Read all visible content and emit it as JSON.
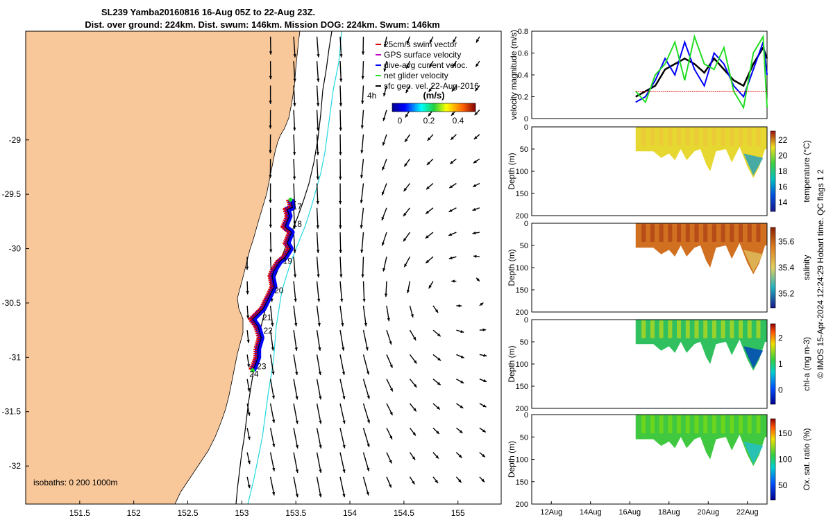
{
  "title": {
    "line1": "SL239 Yamba20160816 16-Aug 05Z to 22-Aug 23Z.",
    "line2": "Dist. over ground: 224km. Dist. swum: 146km. Mission DOG: 224km. Swum: 146km"
  },
  "colors": {
    "land": "#f9c89a",
    "swim": "#e00000",
    "gps": "#c000c0",
    "diveavg": "#0000ff",
    "net": "#22dd22",
    "geo": "#000000",
    "isobath200": "#000000",
    "isobath1000": "#20d8e0"
  },
  "map": {
    "xticks": [
      "151.5",
      "152",
      "152.5",
      "153",
      "153.5",
      "154",
      "154.5",
      "155"
    ],
    "yticks": [
      "-29",
      "-29.5",
      "-30",
      "-30.5",
      "-31",
      "-31.5",
      "-32"
    ],
    "xrange": [
      151.0,
      155.4
    ],
    "yrange": [
      -32.35,
      -28.0
    ],
    "isobaths_label": "isobaths: 0   200  1000m",
    "legend": [
      {
        "label": "25cm/s swim vector",
        "color": "#e00000"
      },
      {
        "label": "GPS surface velocity",
        "color": "#c000c0"
      },
      {
        "label": "dive-avg current veloc.",
        "color": "#0000ff"
      },
      {
        "label": "net glider velocity",
        "color": "#22dd22"
      },
      {
        "label": "sfc geo. vel. 22-Aug-2016",
        "color": "#000000"
      }
    ],
    "time_label": "4h",
    "colorbar": {
      "title": "(m/s)",
      "ticks": [
        "0",
        "0.2",
        "0.4"
      ]
    },
    "day_labels": [
      {
        "day": "17",
        "lon": 153.47,
        "lat": -29.64
      },
      {
        "day": "18",
        "lon": 153.47,
        "lat": -29.8
      },
      {
        "day": "19",
        "lon": 153.38,
        "lat": -30.14
      },
      {
        "day": "20",
        "lon": 153.3,
        "lat": -30.41
      },
      {
        "day": "21",
        "lon": 153.19,
        "lat": -30.66
      },
      {
        "day": "22",
        "lon": 153.2,
        "lat": -30.78
      },
      {
        "day": "23",
        "lon": 153.14,
        "lat": -31.11
      },
      {
        "day": "24",
        "lon": 153.07,
        "lat": -31.18
      }
    ],
    "track": [
      [
        153.45,
        -29.55
      ],
      [
        153.47,
        -29.62
      ],
      [
        153.42,
        -29.64
      ],
      [
        153.44,
        -29.7
      ],
      [
        153.4,
        -29.8
      ],
      [
        153.46,
        -29.85
      ],
      [
        153.42,
        -29.95
      ],
      [
        153.45,
        -30.0
      ],
      [
        153.4,
        -30.08
      ],
      [
        153.35,
        -30.12
      ],
      [
        153.3,
        -30.2
      ],
      [
        153.28,
        -30.25
      ],
      [
        153.3,
        -30.35
      ],
      [
        153.25,
        -30.45
      ],
      [
        153.2,
        -30.55
      ],
      [
        153.1,
        -30.65
      ],
      [
        153.15,
        -30.72
      ],
      [
        153.18,
        -30.82
      ],
      [
        153.15,
        -30.92
      ],
      [
        153.15,
        -31.0
      ],
      [
        153.12,
        -31.08
      ],
      [
        153.1,
        -31.12
      ]
    ]
  },
  "timeseries": {
    "xticks": [
      "12Aug",
      "14Aug",
      "16Aug",
      "18Aug",
      "20Aug",
      "22Aug"
    ],
    "velocity": {
      "ylabel": "velocity magnitude (m/s)",
      "ylim": [
        0,
        0.8
      ],
      "yticks": [
        "0",
        "0.2",
        "0.4",
        "0.6",
        "0.8"
      ]
    },
    "panels": [
      {
        "ylabel": "Depth (m)",
        "cblabel": "temperature (°C)",
        "cbticks": [
          "14",
          "16",
          "18",
          "20",
          "22"
        ]
      },
      {
        "ylabel": "Depth (m)",
        "cblabel": "salinity",
        "cbticks": [
          "35.2",
          "35.4",
          "35.6"
        ]
      },
      {
        "ylabel": "Depth (m)",
        "cblabel": "chl-a (mg m-3)",
        "cbticks": [
          "0",
          "1",
          "2"
        ]
      },
      {
        "ylabel": "Depth (m)",
        "cblabel": "Ox. sat. ratio (%)",
        "cbticks": [
          "50",
          "100",
          "150"
        ]
      }
    ],
    "depth_ticks": [
      "0",
      "50",
      "100",
      "150",
      "200"
    ]
  },
  "footer": "© IMOS 15-Apr-2024 12:24:29 Hobart time. QC flags 1  2",
  "chart_data": [
    {
      "type": "line",
      "title": "",
      "xlabel": "",
      "ylabel": "velocity magnitude (m/s)",
      "ylim": [
        0,
        0.8
      ],
      "x_days": [
        16.3,
        16.8,
        17.3,
        17.8,
        18.3,
        18.8,
        19.3,
        19.8,
        20.3,
        20.8,
        21.3,
        21.8,
        22.3,
        22.8,
        23.0
      ],
      "series": [
        {
          "color": "#000000",
          "values": [
            0.2,
            0.25,
            0.3,
            0.45,
            0.5,
            0.55,
            0.5,
            0.42,
            0.55,
            0.45,
            0.35,
            0.3,
            0.5,
            0.65,
            0.55
          ]
        },
        {
          "color": "#0000ff",
          "values": [
            0.15,
            0.2,
            0.35,
            0.55,
            0.4,
            0.7,
            0.45,
            0.3,
            0.6,
            0.5,
            0.3,
            0.2,
            0.45,
            0.7,
            0.4
          ]
        },
        {
          "color": "#22dd22",
          "values": [
            0.25,
            0.15,
            0.4,
            0.5,
            0.7,
            0.35,
            0.75,
            0.5,
            0.45,
            0.65,
            0.25,
            0.1,
            0.6,
            0.75,
            0.1
          ]
        },
        {
          "color": "#e00000",
          "values": [
            0.25,
            0.25,
            0.25,
            0.25,
            0.25,
            0.25,
            0.25,
            0.25,
            0.25,
            0.25,
            0.25,
            0.25,
            0.25,
            0.25,
            0.25
          ]
        }
      ]
    },
    {
      "type": "heatmap",
      "ylabel": "Depth (m)",
      "xlabel": "",
      "title": "",
      "ylim": [
        200,
        0
      ],
      "colorbar_label": "temperature (°C)",
      "clim": [
        13,
        23.5
      ]
    },
    {
      "type": "heatmap",
      "ylabel": "Depth (m)",
      "xlabel": "",
      "title": "",
      "ylim": [
        200,
        0
      ],
      "colorbar_label": "salinity",
      "clim": [
        35.1,
        35.75
      ]
    },
    {
      "type": "heatmap",
      "ylabel": "Depth (m)",
      "xlabel": "",
      "title": "",
      "ylim": [
        200,
        0
      ],
      "colorbar_label": "chl-a (mg m-3)",
      "clim": [
        0,
        2
      ]
    },
    {
      "type": "heatmap",
      "ylabel": "Depth (m)",
      "xlabel": "",
      "title": "",
      "ylim": [
        200,
        0
      ],
      "colorbar_label": "Ox. sat. ratio (%)",
      "clim": [
        30,
        170
      ]
    }
  ]
}
